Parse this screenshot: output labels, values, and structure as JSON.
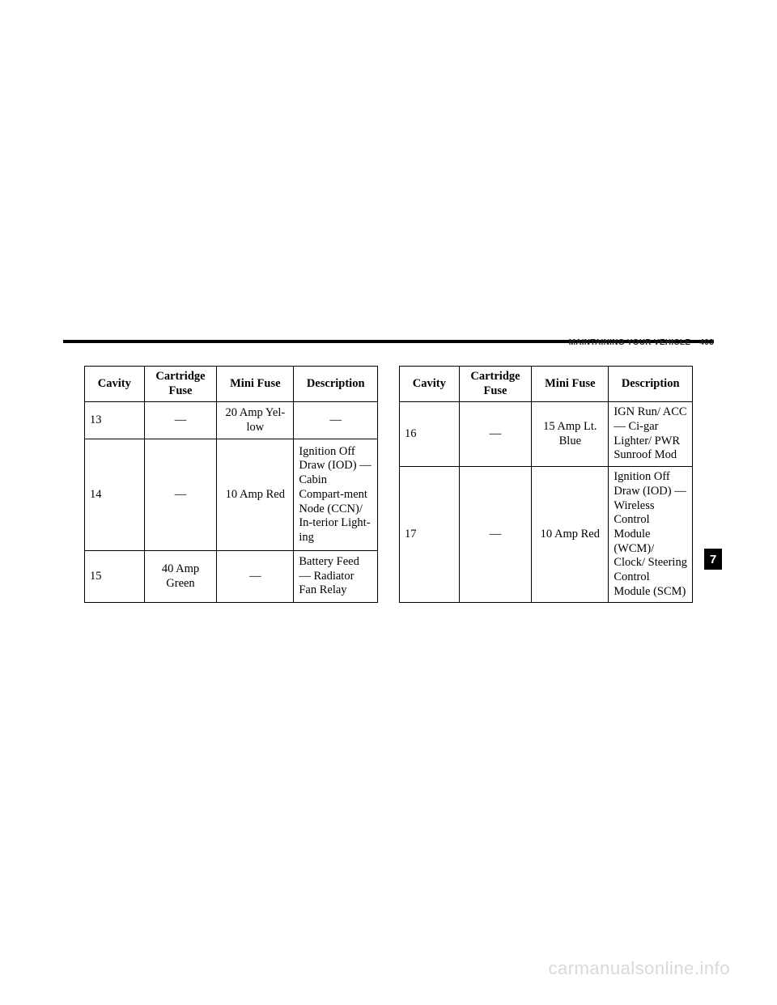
{
  "header": {
    "section": "MAINTAINING YOUR VEHICLE",
    "page": "403"
  },
  "thumb": "7",
  "tables": {
    "left": {
      "columns": [
        "Cavity",
        "Cartridge Fuse",
        "Mini Fuse",
        "Description"
      ],
      "rows": [
        {
          "cavity": "13",
          "cartridge": "—",
          "mini": "20 Amp Yel-low",
          "desc": "—",
          "align": {
            "cavity": "left",
            "cartridge": "center",
            "mini": "center",
            "desc": "center"
          }
        },
        {
          "cavity": "14",
          "cartridge": "—",
          "mini": "10 Amp Red",
          "desc": "Ignition Off Draw (IOD) — Cabin Compart-ment Node (CCN)/ In-terior Light-ing",
          "align": {
            "cavity": "left",
            "cartridge": "center",
            "mini": "center",
            "desc": "left"
          }
        },
        {
          "cavity": "15",
          "cartridge": "40 Amp Green",
          "mini": "—",
          "desc": "Battery Feed — Radiator Fan Relay",
          "align": {
            "cavity": "left",
            "cartridge": "center",
            "mini": "center",
            "desc": "left"
          }
        }
      ]
    },
    "right": {
      "columns": [
        "Cavity",
        "Cartridge Fuse",
        "Mini Fuse",
        "Description"
      ],
      "rows": [
        {
          "cavity": "16",
          "cartridge": "—",
          "mini": "15 Amp Lt. Blue",
          "desc": "IGN Run/ ACC — Ci-gar Lighter/ PWR Sunroof Mod",
          "align": {
            "cavity": "left",
            "cartridge": "center",
            "mini": "center",
            "desc": "left"
          }
        },
        {
          "cavity": "17",
          "cartridge": "—",
          "mini": "10 Amp Red",
          "desc": "Ignition Off Draw (IOD) — Wireless Control Module (WCM)/ Clock/ Steering Control Module (SCM)",
          "align": {
            "cavity": "left",
            "cartridge": "center",
            "mini": "center",
            "desc": "left"
          }
        }
      ]
    }
  },
  "watermark": "carmanualsonline.info"
}
